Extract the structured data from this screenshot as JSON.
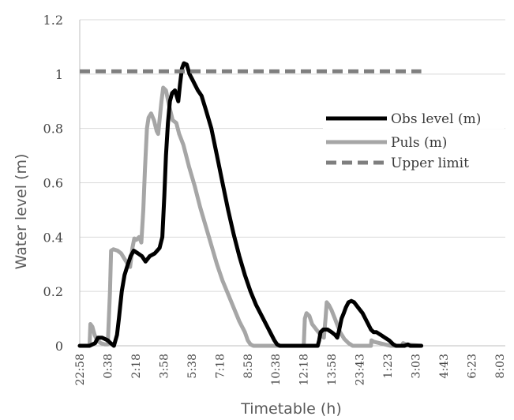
{
  "chart_data": {
    "type": "line",
    "xlabel": "Timetable (h)",
    "ylabel": "Water level (m)",
    "ylim": [
      0,
      1.2
    ],
    "yticks": [
      "0",
      "0.2",
      "0.4",
      "0.6",
      "0.8",
      "1",
      "1.2"
    ],
    "yvalues": [
      0,
      0.2,
      0.4,
      0.6,
      0.8,
      1.0,
      1.2
    ],
    "xticks": [
      "22:58",
      "0:38",
      "2:18",
      "3:58",
      "5:38",
      "7:18",
      "8:58",
      "10:38",
      "12:18",
      "13:58",
      "23:43",
      "1:23",
      "3:03",
      "4:43",
      "6:23",
      "8:03"
    ],
    "grid": "horizontal",
    "legend_position": "right",
    "series": [
      {
        "name": "Obs level (m)",
        "color": "#000000",
        "style": "solid",
        "points": [
          [
            0,
            0
          ],
          [
            0.35,
            0
          ],
          [
            0.55,
            0.01
          ],
          [
            0.65,
            0.03
          ],
          [
            0.8,
            0.03
          ],
          [
            1.0,
            0.02
          ],
          [
            1.1,
            0.01
          ],
          [
            1.22,
            0.0
          ],
          [
            1.33,
            0.04
          ],
          [
            1.4,
            0.1
          ],
          [
            1.5,
            0.2
          ],
          [
            1.6,
            0.26
          ],
          [
            1.72,
            0.3
          ],
          [
            1.82,
            0.33
          ],
          [
            1.93,
            0.35
          ],
          [
            2.08,
            0.34
          ],
          [
            2.22,
            0.33
          ],
          [
            2.35,
            0.31
          ],
          [
            2.5,
            0.33
          ],
          [
            2.68,
            0.34
          ],
          [
            2.85,
            0.36
          ],
          [
            2.95,
            0.4
          ],
          [
            3.02,
            0.55
          ],
          [
            3.08,
            0.7
          ],
          [
            3.15,
            0.82
          ],
          [
            3.22,
            0.9
          ],
          [
            3.3,
            0.93
          ],
          [
            3.4,
            0.94
          ],
          [
            3.52,
            0.9
          ],
          [
            3.58,
            0.96
          ],
          [
            3.65,
            1.02
          ],
          [
            3.72,
            1.04
          ],
          [
            3.82,
            1.035
          ],
          [
            3.92,
            1.0
          ],
          [
            4.02,
            0.98
          ],
          [
            4.12,
            0.96
          ],
          [
            4.22,
            0.94
          ],
          [
            4.35,
            0.92
          ],
          [
            4.5,
            0.87
          ],
          [
            4.7,
            0.8
          ],
          [
            4.9,
            0.7
          ],
          [
            5.1,
            0.6
          ],
          [
            5.3,
            0.5
          ],
          [
            5.5,
            0.41
          ],
          [
            5.7,
            0.33
          ],
          [
            5.9,
            0.26
          ],
          [
            6.1,
            0.2
          ],
          [
            6.3,
            0.15
          ],
          [
            6.5,
            0.11
          ],
          [
            6.7,
            0.07
          ],
          [
            6.85,
            0.04
          ],
          [
            6.95,
            0.02
          ],
          [
            7.05,
            0.005
          ],
          [
            7.15,
            0
          ],
          [
            8.5,
            0
          ],
          [
            8.55,
            0.02
          ],
          [
            8.6,
            0.05
          ],
          [
            8.7,
            0.06
          ],
          [
            8.85,
            0.06
          ],
          [
            9.0,
            0.05
          ],
          [
            9.12,
            0.04
          ],
          [
            9.2,
            0.03
          ],
          [
            9.27,
            0.06
          ],
          [
            9.35,
            0.1
          ],
          [
            9.43,
            0.12
          ],
          [
            9.5,
            0.14
          ],
          [
            9.6,
            0.16
          ],
          [
            9.7,
            0.165
          ],
          [
            9.8,
            0.16
          ],
          [
            9.95,
            0.14
          ],
          [
            10.1,
            0.12
          ],
          [
            10.25,
            0.09
          ],
          [
            10.4,
            0.06
          ],
          [
            10.5,
            0.05
          ],
          [
            10.6,
            0.05
          ],
          [
            10.75,
            0.04
          ],
          [
            10.9,
            0.03
          ],
          [
            11.05,
            0.02
          ],
          [
            11.2,
            0.005
          ],
          [
            11.3,
            0
          ],
          [
            11.6,
            0
          ],
          [
            11.72,
            0.005
          ],
          [
            11.8,
            0.0
          ],
          [
            12.2,
            0
          ]
        ]
      },
      {
        "name": "Puls (m)",
        "color": "#a6a6a6",
        "style": "solid",
        "points": [
          [
            0,
            0
          ],
          [
            0.35,
            0
          ],
          [
            0.38,
            0.08
          ],
          [
            0.45,
            0.07
          ],
          [
            0.53,
            0.04
          ],
          [
            0.62,
            0.02
          ],
          [
            0.75,
            0.01
          ],
          [
            0.9,
            0.005
          ],
          [
            1.0,
            0.005
          ],
          [
            1.08,
            0.2
          ],
          [
            1.12,
            0.35
          ],
          [
            1.2,
            0.355
          ],
          [
            1.35,
            0.35
          ],
          [
            1.48,
            0.34
          ],
          [
            1.6,
            0.32
          ],
          [
            1.72,
            0.3
          ],
          [
            1.8,
            0.29
          ],
          [
            1.88,
            0.36
          ],
          [
            1.95,
            0.395
          ],
          [
            2.02,
            0.39
          ],
          [
            2.12,
            0.4
          ],
          [
            2.2,
            0.38
          ],
          [
            2.27,
            0.5
          ],
          [
            2.33,
            0.65
          ],
          [
            2.4,
            0.8
          ],
          [
            2.46,
            0.84
          ],
          [
            2.55,
            0.855
          ],
          [
            2.65,
            0.83
          ],
          [
            2.75,
            0.79
          ],
          [
            2.8,
            0.78
          ],
          [
            2.86,
            0.84
          ],
          [
            2.92,
            0.9
          ],
          [
            2.98,
            0.95
          ],
          [
            3.08,
            0.94
          ],
          [
            3.2,
            0.88
          ],
          [
            3.32,
            0.83
          ],
          [
            3.45,
            0.82
          ],
          [
            3.55,
            0.78
          ],
          [
            3.7,
            0.74
          ],
          [
            3.9,
            0.66
          ],
          [
            4.1,
            0.59
          ],
          [
            4.3,
            0.51
          ],
          [
            4.5,
            0.44
          ],
          [
            4.7,
            0.37
          ],
          [
            4.9,
            0.3
          ],
          [
            5.1,
            0.24
          ],
          [
            5.3,
            0.19
          ],
          [
            5.5,
            0.14
          ],
          [
            5.7,
            0.09
          ],
          [
            5.9,
            0.05
          ],
          [
            6.0,
            0.02
          ],
          [
            6.1,
            0.005
          ],
          [
            6.2,
            0
          ],
          [
            8.0,
            0
          ],
          [
            8.04,
            0.1
          ],
          [
            8.1,
            0.12
          ],
          [
            8.2,
            0.11
          ],
          [
            8.3,
            0.08
          ],
          [
            8.45,
            0.06
          ],
          [
            8.6,
            0.04
          ],
          [
            8.72,
            0.03
          ],
          [
            8.78,
            0.1
          ],
          [
            8.82,
            0.16
          ],
          [
            8.9,
            0.15
          ],
          [
            9.0,
            0.13
          ],
          [
            9.15,
            0.09
          ],
          [
            9.3,
            0.05
          ],
          [
            9.45,
            0.025
          ],
          [
            9.6,
            0.01
          ],
          [
            9.75,
            0
          ],
          [
            10.4,
            0
          ],
          [
            10.42,
            0.02
          ],
          [
            10.5,
            0.015
          ],
          [
            10.7,
            0.01
          ],
          [
            10.9,
            0.005
          ],
          [
            11.1,
            0
          ],
          [
            11.5,
            0
          ],
          [
            11.55,
            0.01
          ],
          [
            11.65,
            0.005
          ],
          [
            12.2,
            0
          ]
        ]
      },
      {
        "name": "Upper limit",
        "color": "#7f7f7f",
        "style": "dashed",
        "points": [
          [
            0,
            1.01
          ],
          [
            12.2,
            1.01
          ]
        ]
      }
    ]
  }
}
